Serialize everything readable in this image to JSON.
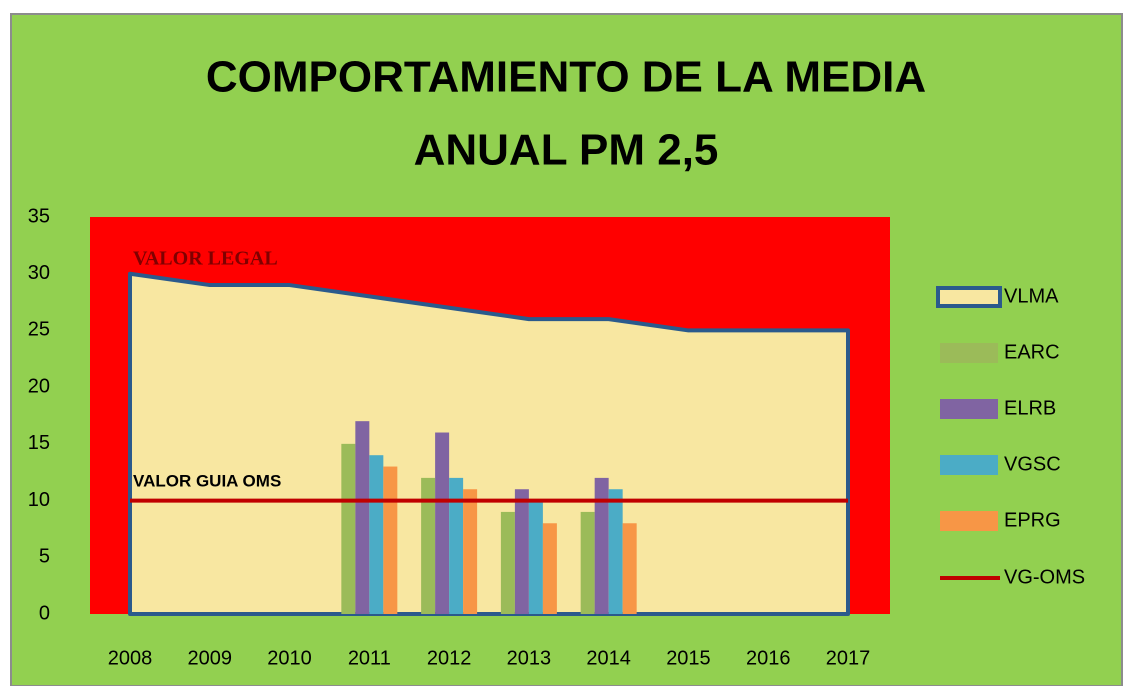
{
  "chart_data": {
    "type": "combo",
    "title": [
      "COMPORTAMIENTO DE LA MEDIA",
      "ANUAL PM 2,5"
    ],
    "categories": [
      "2008",
      "2009",
      "2010",
      "2011",
      "2012",
      "2013",
      "2014",
      "2015",
      "2016",
      "2017"
    ],
    "series": [
      {
        "name": "VLMA",
        "type": "area",
        "color": "#f8e7a1",
        "edge": "#2b5a8c",
        "values": [
          30,
          29,
          29,
          28,
          27,
          26,
          26,
          25,
          25,
          25
        ]
      },
      {
        "name": "EARC",
        "type": "bar",
        "color": "#9bbb59",
        "values": [
          null,
          null,
          null,
          15,
          12,
          9,
          9,
          null,
          null,
          null
        ]
      },
      {
        "name": "ELRB",
        "type": "bar",
        "color": "#8064a2",
        "values": [
          null,
          null,
          null,
          17,
          16,
          11,
          12,
          null,
          null,
          null
        ]
      },
      {
        "name": "VGSC",
        "type": "bar",
        "color": "#4bacc6",
        "values": [
          null,
          null,
          null,
          14,
          12,
          10,
          11,
          null,
          null,
          null
        ]
      },
      {
        "name": "EPRG",
        "type": "bar",
        "color": "#f79646",
        "values": [
          null,
          null,
          null,
          13,
          11,
          8,
          8,
          null,
          null,
          null
        ]
      },
      {
        "name": "VG-OMS",
        "type": "line",
        "color": "#c00000",
        "values": [
          10,
          10,
          10,
          10,
          10,
          10,
          10,
          10,
          10,
          10
        ]
      }
    ],
    "annotations": [
      "VALOR LEGAL",
      "VALOR GUIA OMS"
    ],
    "ylim": [
      0,
      35
    ],
    "yticks": [
      0,
      5,
      10,
      15,
      20,
      25,
      30,
      35
    ],
    "plot_color": "#ff0000",
    "background": "#92d050",
    "legend": "right"
  }
}
